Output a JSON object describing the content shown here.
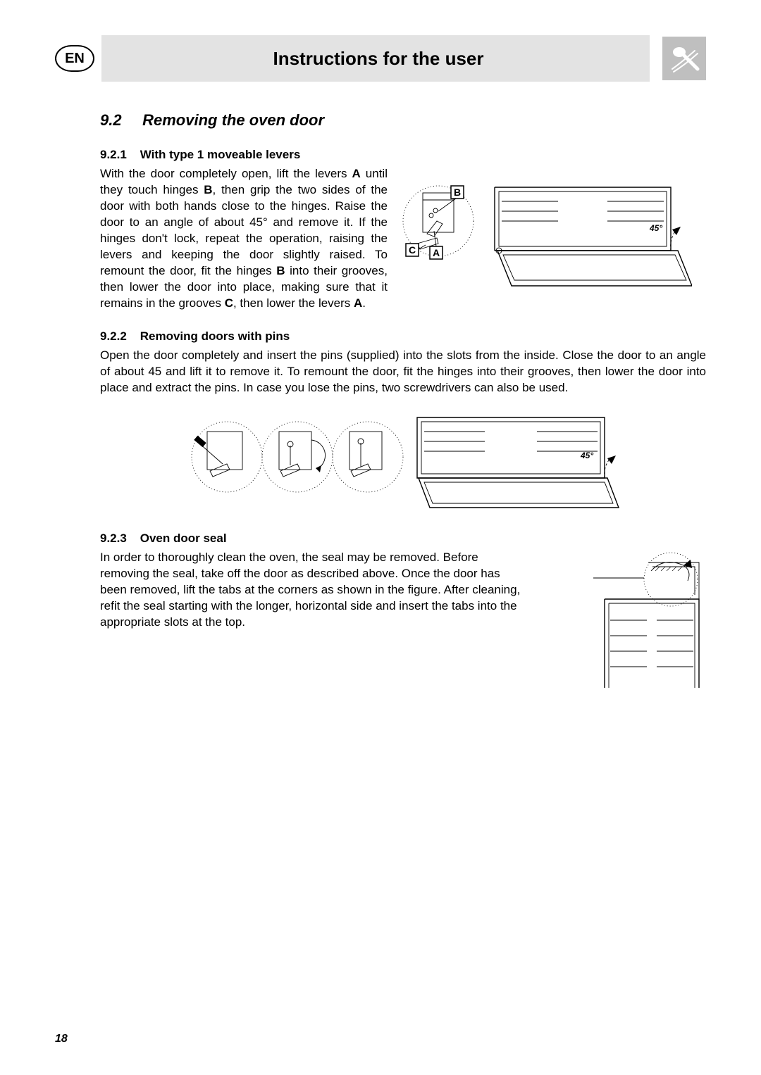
{
  "header": {
    "lang_badge": "EN",
    "title": "Instructions for the user"
  },
  "section": {
    "number": "9.2",
    "title": "Removing the oven door"
  },
  "sub1": {
    "number": "9.2.1",
    "title": "With type 1 moveable levers",
    "body_html": "With the door completely open, lift the levers <b>A</b>  until they touch hinges <b>B</b>, then grip the two sides of the door with both hands close to the hinges. Raise the door to an angle of about 45° and remove it. If the hinges don't lock, repeat the operation, raising the levers and keeping the door slightly raised. To remount the door, fit the hinges <b>B</b> into their grooves, then lower the door into place, making sure that it remains in the grooves <b>C</b>, then lower the levers <b>A</b>.",
    "figure": {
      "labels": {
        "A": "A",
        "B": "B",
        "C": "C",
        "angle": "45°"
      }
    }
  },
  "sub2": {
    "number": "9.2.2",
    "title": "Removing doors with pins",
    "body_html": "Open the door completely and insert the pins (supplied) into the slots from the inside. Close the door to an angle of about 45 and lift it to remove it. To remount the door, fit the hinges into their grooves, then lower the door into place and extract the pins. In case you lose the pins, two screwdrivers can also be used.",
    "figure": {
      "angle": "45°"
    }
  },
  "sub3": {
    "number": "9.2.3",
    "title": "Oven door seal",
    "body_html": "In order to thoroughly clean the oven, the seal may be removed. Before removing the seal, take off the door as described above. Once the door has been removed, lift the tabs at the corners as shown in the figure. After cleaning, refit the seal starting with the longer, horizontal side and insert the tabs into the appropriate slots at the top."
  },
  "page_number": "18",
  "colors": {
    "title_bg": "#e3e3e3",
    "brand_bg": "#bfbfbf",
    "text": "#000000",
    "page_bg": "#ffffff"
  }
}
